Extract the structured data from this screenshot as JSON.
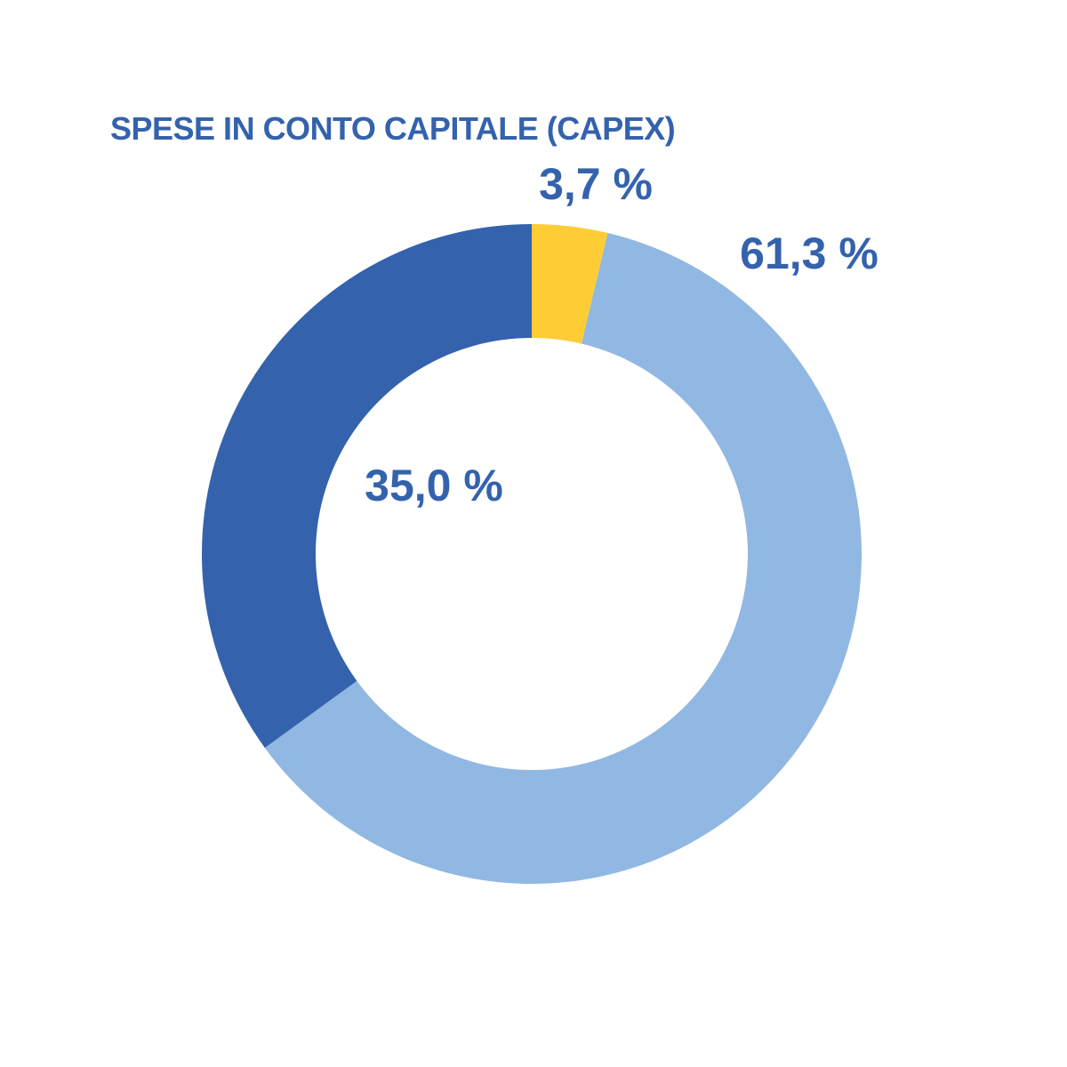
{
  "chart_data": {
    "type": "pie",
    "title": "SPESE IN CONTO CAPITALE (CAPEX)",
    "donut": true,
    "start_angle_deg": 0,
    "direction": "clockwise",
    "slices": [
      {
        "value": 3.7,
        "label": "3,7 %",
        "color": "#fecd36"
      },
      {
        "value": 61.3,
        "label": "61,3 %",
        "color": "#91b8e2"
      },
      {
        "value": 35.0,
        "label": "35,0 %",
        "color": "#3462ad"
      }
    ],
    "label_color": "#3462ad"
  }
}
